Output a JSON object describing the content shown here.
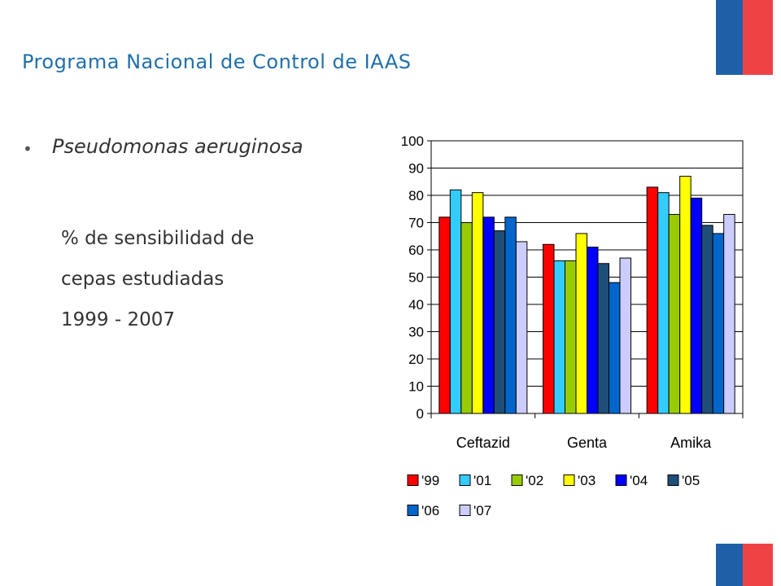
{
  "slide": {
    "title": "Programa Nacional de Control de IAAS",
    "bullet": "Pseudomonas aeruginosa",
    "subtitle_lines": [
      "% de sensibilidad  de",
      "cepas estudiadas",
      "1999 - 2007"
    ]
  },
  "colors": {
    "title": "#1f6fa8",
    "flag_blue": "#1f5fa8",
    "flag_red": "#ef4245"
  },
  "chart_data": {
    "type": "bar",
    "categories": [
      "Ceftazid",
      "Genta",
      "Amika"
    ],
    "ylim": [
      0,
      100
    ],
    "yticks": [
      0,
      10,
      20,
      30,
      40,
      50,
      60,
      70,
      80,
      90,
      100
    ],
    "grid": true,
    "legend_position": "bottom",
    "series": [
      {
        "name": "'99",
        "color": "#ff0000",
        "values": [
          72,
          62,
          83
        ]
      },
      {
        "name": "'01",
        "color": "#33ccff",
        "values": [
          82,
          56,
          81
        ]
      },
      {
        "name": "'02",
        "color": "#99cc00",
        "values": [
          70,
          56,
          73
        ]
      },
      {
        "name": "'03",
        "color": "#ffff00",
        "values": [
          81,
          66,
          87
        ]
      },
      {
        "name": "'04",
        "color": "#0000ff",
        "values": [
          72,
          61,
          79
        ]
      },
      {
        "name": "'05",
        "color": "#1f4e79",
        "values": [
          67,
          55,
          69
        ]
      },
      {
        "name": "'06",
        "color": "#0066cc",
        "values": [
          72,
          48,
          66
        ]
      },
      {
        "name": "'07",
        "color": "#ccccff",
        "values": [
          63,
          57,
          73
        ]
      }
    ]
  }
}
